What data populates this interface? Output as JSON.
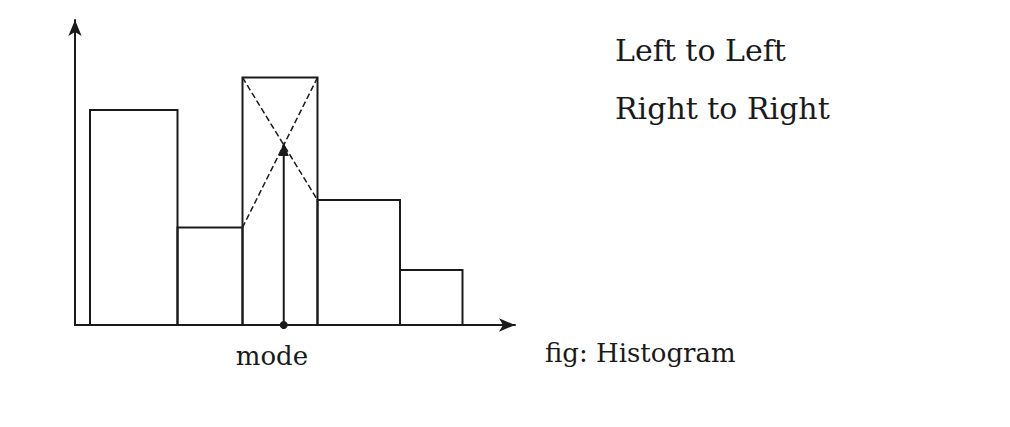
{
  "chart_data": {
    "type": "histogram",
    "bins": [
      0.6,
      4.1,
      6.7,
      9.7,
      13.0,
      15.5
    ],
    "values": [
      8.6,
      3.9,
      9.9,
      5.0,
      2.2
    ],
    "color": "#1a1a1a",
    "xlim": [
      0,
      17.6
    ],
    "ylim": [
      0,
      12.2
    ],
    "tick_labels": false,
    "grid": false,
    "annotations": [
      {
        "text": "mode",
        "x": 8.35
      },
      {
        "text": "Left to Left"
      },
      {
        "text": "Right to Right"
      }
    ],
    "caption": "fig: Histogram"
  }
}
